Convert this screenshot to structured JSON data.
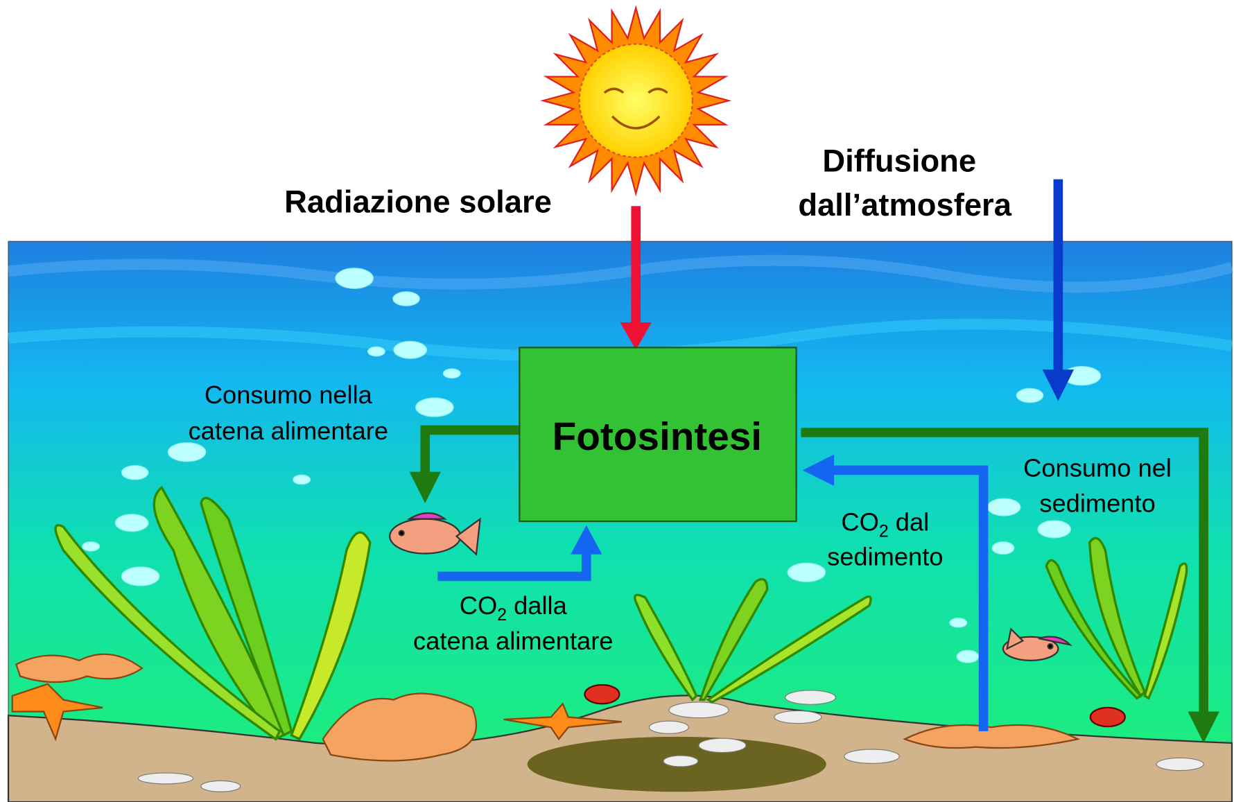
{
  "labels": {
    "solar": "Radiazione solare",
    "diffusion": [
      "Diffusione",
      "dall’atmosfera"
    ],
    "photosynthesis": "Fotosintesi",
    "food_consumption": [
      "Consumo nella",
      "catena alimentare"
    ],
    "co2_food": {
      "prefix": "CO",
      "sub": "2",
      "suffix": " dalla",
      "line2": "catena alimentare"
    },
    "co2_sediment": {
      "prefix": "CO",
      "sub": "2",
      "suffix": " dal",
      "line2": "sedimento"
    },
    "sediment_consumption": [
      "Consumo nel",
      "sedimento"
    ]
  }
}
